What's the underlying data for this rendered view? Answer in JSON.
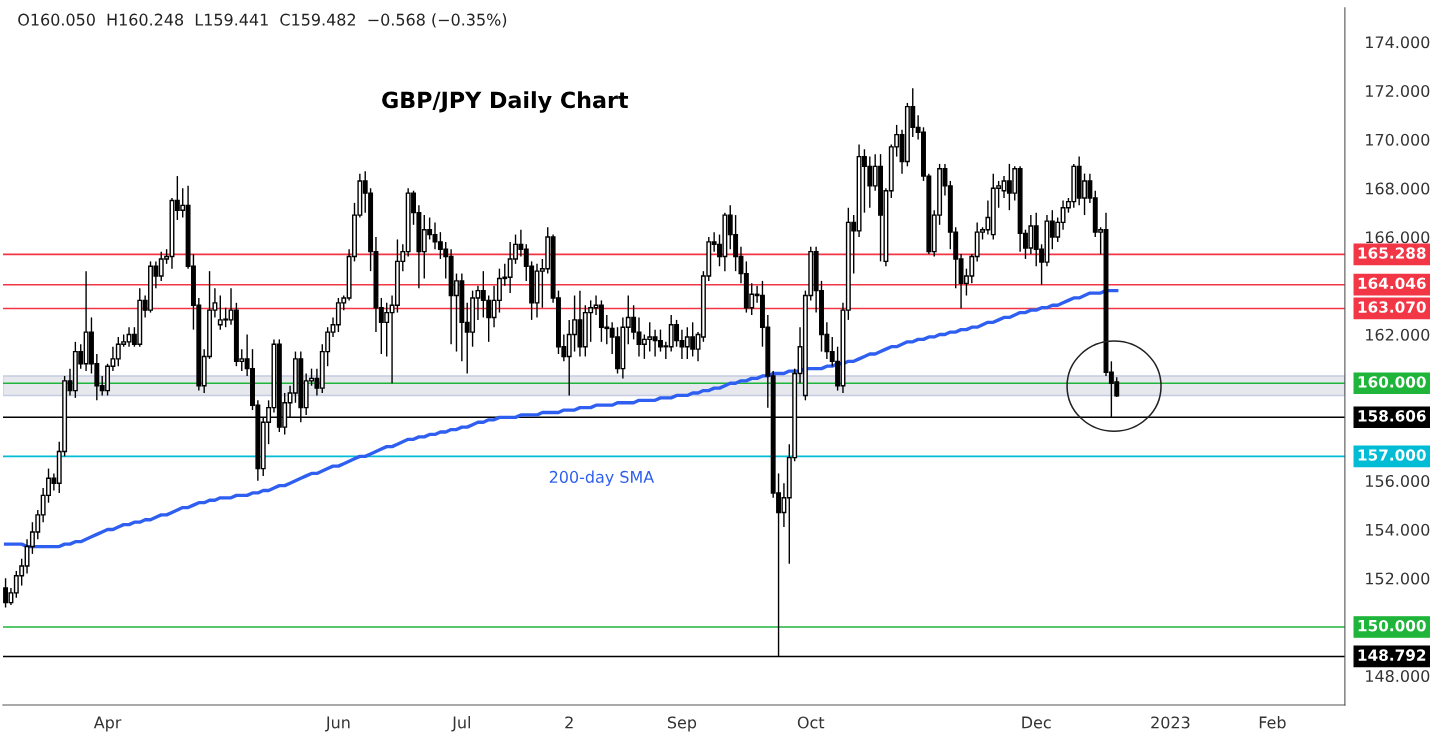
{
  "chart_data": {
    "type": "candlestick",
    "title": "GBP/JPY Daily Chart",
    "annotations": [
      "O160.050  H160.248  L159.441  C159.482  −0.568 (−0.35%)"
    ],
    "categories": [
      null,
      null,
      null,
      null,
      null,
      null,
      null,
      null,
      null,
      null,
      null,
      null,
      null,
      null,
      null,
      null,
      null,
      null,
      null,
      "Apr",
      null,
      null,
      null,
      null,
      null,
      null,
      null,
      null,
      null,
      null,
      null,
      null,
      null,
      null,
      null,
      null,
      null,
      null,
      null,
      null,
      null,
      null,
      null,
      null,
      null,
      null,
      null,
      null,
      null,
      null,
      null,
      null,
      null,
      null,
      null,
      null,
      null,
      null,
      null,
      null,
      null,
      null,
      "Jun",
      null,
      null,
      null,
      null,
      null,
      null,
      null,
      null,
      null,
      null,
      null,
      null,
      null,
      null,
      null,
      null,
      null,
      null,
      null,
      null,
      null,
      null,
      "Jul",
      null,
      null,
      null,
      null,
      null,
      null,
      null,
      null,
      null,
      null,
      null,
      null,
      null,
      null,
      null,
      null,
      null,
      null,
      null,
      "2",
      null,
      null,
      null,
      null,
      null,
      null,
      null,
      null,
      null,
      null,
      null,
      null,
      null,
      null,
      null,
      null,
      null,
      null,
      null,
      null,
      "Sep",
      null,
      null,
      null,
      null,
      null,
      null,
      null,
      null,
      null,
      null,
      null,
      null,
      null,
      null,
      null,
      null,
      null,
      null,
      null,
      null,
      null,
      null,
      null,
      "Oct",
      null,
      null,
      null,
      null,
      null,
      null,
      null,
      null,
      null,
      null,
      null,
      null,
      null,
      null,
      null,
      null,
      null,
      null,
      null,
      null,
      null,
      null,
      null,
      null,
      null,
      null,
      null,
      null,
      null,
      null,
      null,
      null,
      null,
      null,
      null,
      null,
      null,
      null,
      null,
      null,
      null,
      "Dec",
      null,
      null,
      null,
      null,
      null,
      null,
      null,
      null,
      null,
      null,
      null,
      null,
      null,
      null,
      null,
      null,
      null,
      null,
      null,
      null,
      null,
      null,
      null,
      null,
      "2023",
      null,
      null,
      null,
      null,
      null,
      null,
      null,
      null,
      null,
      null,
      null,
      null,
      null,
      null,
      null,
      null,
      null,
      null,
      "Feb",
      null,
      null,
      null,
      null,
      null,
      null,
      null,
      null,
      null,
      null,
      null,
      null,
      null
    ],
    "ohlc": [
      [
        151.6,
        152.0,
        150.8,
        151.0
      ],
      [
        151.0,
        151.6,
        150.9,
        151.4
      ],
      [
        151.4,
        152.3,
        151.2,
        152.1
      ],
      [
        152.1,
        152.8,
        151.7,
        152.5
      ],
      [
        152.5,
        153.6,
        152.2,
        153.3
      ],
      [
        153.3,
        154.3,
        153.0,
        153.9
      ],
      [
        153.9,
        154.8,
        153.6,
        154.6
      ],
      [
        154.6,
        155.7,
        154.3,
        155.4
      ],
      [
        155.4,
        156.5,
        155.1,
        156.1
      ],
      [
        156.1,
        156.3,
        155.6,
        155.9
      ],
      [
        155.9,
        157.6,
        155.5,
        157.2
      ],
      [
        157.2,
        160.3,
        157.0,
        160.1
      ],
      [
        160.1,
        160.6,
        159.5,
        159.7
      ],
      [
        159.7,
        161.7,
        159.4,
        161.3
      ],
      [
        161.3,
        161.6,
        160.6,
        160.8
      ],
      [
        160.8,
        164.6,
        160.5,
        162.1
      ],
      [
        162.1,
        162.7,
        160.4,
        160.8
      ],
      [
        160.8,
        161.2,
        159.3,
        159.9
      ],
      [
        159.9,
        160.3,
        159.5,
        159.7
      ],
      [
        159.7,
        160.8,
        159.5,
        160.7
      ],
      [
        160.7,
        161.5,
        160.5,
        161.0
      ],
      [
        161.0,
        161.9,
        160.7,
        161.6
      ],
      [
        161.6,
        162.0,
        161.5,
        161.7
      ],
      [
        161.7,
        162.3,
        161.5,
        162.0
      ],
      [
        162.0,
        162.3,
        161.5,
        161.6
      ],
      [
        161.6,
        163.9,
        161.5,
        163.4
      ],
      [
        163.4,
        163.6,
        162.7,
        163.0
      ],
      [
        163.0,
        165.0,
        162.9,
        164.8
      ],
      [
        164.8,
        165.0,
        163.9,
        164.4
      ],
      [
        164.4,
        165.4,
        164.2,
        165.1
      ],
      [
        165.1,
        165.5,
        164.9,
        165.2
      ],
      [
        165.2,
        167.6,
        164.7,
        167.5
      ],
      [
        167.5,
        168.5,
        166.7,
        167.1
      ],
      [
        167.1,
        168.0,
        166.8,
        167.3
      ],
      [
        167.3,
        168.1,
        164.7,
        164.8
      ],
      [
        164.8,
        165.3,
        162.2,
        163.2
      ],
      [
        163.2,
        163.5,
        159.7,
        159.9
      ],
      [
        159.9,
        161.4,
        159.6,
        161.1
      ],
      [
        161.1,
        164.6,
        161.0,
        163.0
      ],
      [
        163.0,
        163.9,
        162.7,
        163.3
      ],
      [
        162.4,
        163.6,
        162.2,
        162.6
      ],
      [
        162.6,
        163.1,
        162.3,
        162.6
      ],
      [
        162.6,
        163.9,
        162.4,
        163.0
      ],
      [
        163.0,
        163.3,
        160.7,
        160.9
      ],
      [
        160.9,
        161.4,
        160.5,
        161.0
      ],
      [
        161.0,
        162.0,
        160.3,
        160.6
      ],
      [
        160.6,
        161.4,
        158.9,
        159.1
      ],
      [
        159.1,
        159.3,
        156.0,
        156.5
      ],
      [
        156.5,
        158.6,
        156.2,
        158.4
      ],
      [
        158.4,
        159.3,
        157.5,
        159.0
      ],
      [
        159.0,
        161.8,
        158.8,
        161.6
      ],
      [
        161.6,
        161.8,
        158.0,
        158.2
      ],
      [
        158.2,
        159.6,
        157.9,
        159.2
      ],
      [
        159.2,
        159.9,
        158.6,
        159.6
      ],
      [
        159.6,
        161.3,
        159.2,
        161.0
      ],
      [
        161.0,
        161.3,
        158.4,
        159.0
      ],
      [
        159.0,
        160.4,
        158.7,
        160.1
      ],
      [
        160.1,
        160.6,
        159.9,
        160.2
      ],
      [
        160.2,
        160.6,
        159.5,
        159.8
      ],
      [
        159.8,
        161.6,
        159.6,
        161.3
      ],
      [
        161.3,
        162.3,
        160.7,
        162.1
      ],
      [
        162.1,
        162.7,
        161.9,
        162.4
      ],
      [
        162.4,
        163.5,
        162.1,
        163.3
      ],
      [
        163.3,
        163.6,
        163.0,
        163.5
      ],
      [
        163.5,
        165.5,
        163.4,
        165.2
      ],
      [
        165.2,
        167.4,
        165.0,
        166.9
      ],
      [
        166.9,
        168.6,
        166.8,
        168.3
      ],
      [
        168.3,
        168.7,
        167.0,
        167.8
      ],
      [
        167.8,
        168.0,
        164.6,
        165.4
      ],
      [
        165.4,
        166.0,
        162.1,
        163.1
      ],
      [
        163.1,
        163.5,
        161.2,
        162.5
      ],
      [
        162.5,
        163.3,
        161.1,
        162.9
      ],
      [
        162.9,
        163.6,
        160.0,
        163.2
      ],
      [
        163.2,
        165.9,
        162.9,
        165.0
      ],
      [
        165.0,
        165.7,
        164.6,
        165.4
      ],
      [
        165.4,
        168.0,
        165.2,
        167.8
      ],
      [
        167.8,
        167.9,
        166.5,
        167.0
      ],
      [
        167.0,
        167.3,
        163.9,
        165.4
      ],
      [
        165.4,
        166.9,
        164.3,
        166.3
      ],
      [
        166.3,
        166.8,
        165.9,
        166.1
      ],
      [
        166.1,
        166.6,
        165.5,
        165.8
      ],
      [
        165.8,
        166.2,
        165.1,
        165.5
      ],
      [
        165.5,
        165.8,
        164.3,
        165.2
      ],
      [
        165.2,
        165.5,
        161.6,
        163.6
      ],
      [
        163.6,
        164.5,
        161.3,
        164.2
      ],
      [
        164.2,
        164.5,
        160.9,
        162.5
      ],
      [
        162.5,
        163.3,
        160.4,
        162.1
      ],
      [
        162.1,
        163.8,
        161.5,
        163.5
      ],
      [
        163.5,
        164.0,
        162.6,
        163.8
      ],
      [
        163.8,
        164.6,
        162.7,
        163.4
      ],
      [
        163.4,
        163.6,
        161.7,
        162.7
      ],
      [
        162.7,
        164.0,
        162.3,
        163.4
      ],
      [
        163.4,
        164.7,
        162.9,
        164.3
      ],
      [
        164.3,
        164.9,
        164.0,
        164.35
      ],
      [
        164.35,
        165.8,
        163.7,
        165.1
      ],
      [
        165.1,
        166.1,
        164.9,
        165.7
      ],
      [
        165.7,
        166.3,
        165.2,
        165.5
      ],
      [
        165.5,
        165.7,
        164.2,
        164.8
      ],
      [
        164.8,
        165.0,
        162.6,
        163.3
      ],
      [
        163.3,
        164.9,
        162.7,
        164.6
      ],
      [
        164.6,
        165.1,
        163.1,
        164.7
      ],
      [
        164.7,
        166.4,
        164.5,
        166.0
      ],
      [
        166.0,
        166.1,
        163.3,
        163.5
      ],
      [
        163.5,
        163.8,
        161.2,
        161.5
      ],
      [
        161.5,
        162.0,
        160.9,
        161.1
      ],
      [
        161.1,
        162.6,
        159.5,
        162.0
      ],
      [
        162.0,
        163.6,
        161.3,
        162.6
      ],
      [
        162.6,
        163.8,
        161.1,
        161.5
      ],
      [
        161.5,
        163.2,
        161.1,
        162.9
      ],
      [
        162.9,
        163.4,
        161.7,
        163.1
      ],
      [
        163.1,
        163.6,
        162.8,
        163.2
      ],
      [
        163.2,
        163.4,
        161.7,
        162.3
      ],
      [
        162.3,
        162.8,
        161.6,
        162.25
      ],
      [
        162.25,
        162.5,
        161.2,
        161.9
      ],
      [
        161.9,
        162.3,
        160.4,
        160.6
      ],
      [
        160.6,
        162.7,
        160.2,
        162.3
      ],
      [
        162.3,
        163.6,
        161.6,
        162.7
      ],
      [
        162.7,
        163.2,
        161.8,
        162.1
      ],
      [
        162.1,
        162.7,
        161.1,
        161.6
      ],
      [
        161.6,
        162.0,
        161.0,
        161.8
      ],
      [
        161.8,
        162.5,
        161.3,
        161.9
      ],
      [
        161.9,
        162.2,
        161.1,
        161.75
      ],
      [
        161.75,
        162.2,
        161.3,
        161.5
      ],
      [
        161.5,
        161.7,
        161.0,
        161.5
      ],
      [
        161.5,
        162.8,
        161.3,
        162.4
      ],
      [
        162.4,
        162.6,
        161.5,
        161.75
      ],
      [
        161.75,
        162.2,
        161.0,
        161.5
      ],
      [
        161.5,
        162.3,
        161.0,
        161.9
      ],
      [
        161.9,
        162.5,
        161.1,
        161.4
      ],
      [
        161.4,
        162.1,
        160.9,
        162.0
      ],
      [
        161.9,
        164.6,
        161.7,
        164.4
      ],
      [
        164.4,
        166.0,
        164.2,
        165.8
      ],
      [
        165.8,
        166.2,
        165.4,
        165.7
      ],
      [
        165.7,
        166.1,
        164.8,
        165.2
      ],
      [
        165.2,
        167.0,
        164.6,
        166.9
      ],
      [
        166.9,
        167.3,
        165.5,
        166.1
      ],
      [
        166.1,
        166.9,
        164.6,
        165.2
      ],
      [
        165.2,
        165.6,
        164.1,
        164.5
      ],
      [
        164.5,
        165.0,
        162.9,
        163.1
      ],
      [
        163.1,
        164.1,
        162.8,
        163.65
      ],
      [
        163.65,
        164.0,
        163.3,
        163.6
      ],
      [
        163.6,
        164.2,
        161.5,
        162.3
      ],
      [
        162.3,
        162.8,
        159.0,
        160.3
      ],
      [
        160.3,
        160.5,
        155.3,
        155.5
      ],
      [
        155.5,
        156.3,
        148.79,
        154.7
      ],
      [
        154.7,
        155.9,
        154.1,
        155.3
      ],
      [
        155.3,
        157.5,
        152.6,
        156.95
      ],
      [
        156.95,
        160.6,
        156.8,
        160.4
      ],
      [
        160.4,
        162.3,
        160.0,
        161.5
      ],
      [
        159.5,
        163.8,
        159.3,
        163.6
      ],
      [
        163.6,
        165.6,
        163.4,
        165.4
      ],
      [
        165.4,
        165.6,
        162.9,
        163.8
      ],
      [
        163.8,
        164.2,
        161.3,
        162.0
      ],
      [
        162.0,
        162.5,
        161.0,
        161.3
      ],
      [
        161.3,
        161.9,
        160.7,
        160.9
      ],
      [
        160.9,
        161.5,
        159.7,
        159.9
      ],
      [
        159.9,
        163.3,
        159.6,
        163.0
      ],
      [
        163.0,
        167.2,
        162.6,
        166.6
      ],
      [
        166.6,
        166.9,
        164.5,
        166.25
      ],
      [
        166.25,
        169.8,
        166.0,
        169.3
      ],
      [
        169.3,
        169.6,
        167.0,
        168.9
      ],
      [
        168.9,
        169.3,
        167.2,
        168.1
      ],
      [
        168.1,
        169.4,
        167.9,
        168.9
      ],
      [
        168.9,
        169.4,
        165.0,
        166.9
      ],
      [
        165.0,
        168.0,
        164.8,
        167.9
      ],
      [
        167.9,
        169.8,
        167.6,
        169.7
      ],
      [
        169.7,
        170.6,
        169.3,
        170.2
      ],
      [
        170.2,
        170.4,
        168.6,
        169.1
      ],
      [
        169.1,
        171.5,
        168.9,
        171.35
      ],
      [
        171.35,
        172.1,
        170.1,
        170.5
      ],
      [
        170.5,
        171.0,
        170.0,
        170.3
      ],
      [
        170.3,
        170.5,
        168.3,
        168.5
      ],
      [
        168.5,
        168.6,
        165.3,
        165.4
      ],
      [
        165.4,
        167.1,
        165.2,
        166.9
      ],
      [
        166.9,
        169.0,
        166.5,
        168.8
      ],
      [
        168.8,
        169.0,
        167.7,
        168.1
      ],
      [
        168.1,
        168.3,
        165.5,
        166.2
      ],
      [
        166.2,
        166.4,
        163.9,
        165.1
      ],
      [
        165.1,
        165.3,
        163.07,
        164.1
      ],
      [
        164.1,
        164.7,
        163.6,
        164.4
      ],
      [
        164.4,
        165.3,
        164.1,
        165.2
      ],
      [
        165.2,
        166.6,
        165.0,
        166.2
      ],
      [
        166.2,
        166.4,
        165.9,
        166.3
      ],
      [
        166.3,
        167.5,
        166.1,
        166.8
      ],
      [
        166.1,
        168.6,
        165.9,
        168.0
      ],
      [
        168.0,
        168.3,
        167.2,
        168.1
      ],
      [
        167.9,
        168.5,
        167.6,
        168.3
      ],
      [
        168.3,
        169.0,
        167.1,
        167.8
      ],
      [
        167.8,
        168.9,
        167.5,
        168.8
      ],
      [
        168.8,
        168.9,
        165.4,
        166.15
      ],
      [
        166.15,
        166.3,
        165.1,
        165.55
      ],
      [
        165.55,
        166.9,
        165.3,
        166.45
      ],
      [
        166.45,
        167.0,
        164.8,
        165.5
      ],
      [
        165.5,
        165.7,
        164.046,
        164.97
      ],
      [
        164.97,
        166.9,
        164.8,
        166.65
      ],
      [
        166.65,
        167.1,
        165.5,
        166.0
      ],
      [
        166.0,
        166.8,
        165.8,
        166.6
      ],
      [
        166.6,
        167.5,
        166.3,
        167.2
      ],
      [
        167.2,
        167.6,
        167.0,
        167.45
      ],
      [
        167.45,
        169.0,
        167.2,
        168.9
      ],
      [
        168.9,
        169.3,
        167.3,
        167.6
      ],
      [
        167.6,
        168.6,
        166.9,
        168.3
      ],
      [
        168.3,
        168.6,
        167.4,
        167.6
      ],
      [
        167.6,
        167.9,
        166.0,
        166.2
      ],
      [
        166.2,
        166.4,
        165.288,
        166.3
      ],
      [
        166.3,
        167.0,
        160.3,
        160.45
      ],
      [
        160.45,
        160.9,
        158.606,
        160.0
      ],
      [
        160.05,
        160.248,
        159.441,
        159.482
      ],
      null,
      null,
      null,
      null,
      null,
      null,
      null,
      null,
      null,
      null,
      null,
      null,
      null,
      null,
      null,
      null,
      null,
      null,
      null,
      null,
      null,
      null,
      null,
      null,
      null,
      null,
      null,
      null,
      null,
      null,
      null,
      null,
      null,
      null,
      null,
      null,
      null,
      null,
      null,
      null,
      null,
      null
    ],
    "series": [
      {
        "name": "200-day SMA",
        "type": "line",
        "color": "#2f5ff0",
        "values": [
          153.4,
          153.4,
          153.4,
          153.4,
          153.3,
          153.3,
          153.3,
          153.3,
          153.3,
          153.3,
          153.3,
          153.4,
          153.4,
          153.5,
          153.5,
          153.6,
          153.7,
          153.8,
          153.9,
          154.0,
          154.0,
          154.1,
          154.2,
          154.2,
          154.3,
          154.3,
          154.4,
          154.4,
          154.5,
          154.6,
          154.6,
          154.7,
          154.8,
          154.9,
          154.9,
          155.0,
          155.1,
          155.1,
          155.2,
          155.2,
          155.3,
          155.3,
          155.3,
          155.4,
          155.4,
          155.4,
          155.5,
          155.5,
          155.6,
          155.6,
          155.7,
          155.8,
          155.8,
          155.9,
          156.0,
          156.1,
          156.2,
          156.3,
          156.3,
          156.4,
          156.5,
          156.6,
          156.6,
          156.7,
          156.8,
          156.9,
          157.0,
          157.0,
          157.1,
          157.2,
          157.3,
          157.4,
          157.4,
          157.5,
          157.6,
          157.7,
          157.7,
          157.8,
          157.8,
          157.9,
          157.9,
          158.0,
          158.0,
          158.1,
          158.1,
          158.2,
          158.2,
          158.3,
          158.4,
          158.4,
          158.5,
          158.5,
          158.6,
          158.6,
          158.6,
          158.6,
          158.7,
          158.7,
          158.7,
          158.7,
          158.8,
          158.8,
          158.8,
          158.8,
          158.9,
          158.9,
          158.9,
          159.0,
          159.0,
          159.0,
          159.1,
          159.1,
          159.1,
          159.1,
          159.2,
          159.2,
          159.2,
          159.2,
          159.3,
          159.3,
          159.3,
          159.3,
          159.4,
          159.4,
          159.4,
          159.5,
          159.5,
          159.5,
          159.6,
          159.6,
          159.7,
          159.7,
          159.8,
          159.8,
          159.9,
          160.0,
          160.0,
          160.1,
          160.1,
          160.2,
          160.2,
          160.3,
          160.3,
          160.4,
          160.4,
          160.4,
          160.5,
          160.5,
          160.5,
          160.6,
          160.6,
          160.6,
          160.6,
          160.7,
          160.7,
          160.8,
          160.8,
          160.9,
          160.9,
          161.0,
          161.1,
          161.2,
          161.2,
          161.3,
          161.4,
          161.5,
          161.5,
          161.6,
          161.7,
          161.7,
          161.8,
          161.8,
          161.9,
          161.9,
          162.0,
          162.0,
          162.1,
          162.1,
          162.2,
          162.2,
          162.3,
          162.3,
          162.4,
          162.5,
          162.5,
          162.6,
          162.7,
          162.7,
          162.8,
          162.9,
          162.9,
          163.0,
          163.0,
          163.1,
          163.1,
          163.2,
          163.2,
          163.3,
          163.4,
          163.5,
          163.5,
          163.6,
          163.7,
          163.7,
          163.7,
          163.8,
          163.8,
          163.8,
          null,
          null,
          null,
          null,
          null,
          null,
          null,
          null,
          null,
          null,
          null,
          null,
          null,
          null,
          null,
          null,
          null,
          null,
          null,
          null,
          null,
          null,
          null,
          null,
          null,
          null,
          null,
          null,
          null,
          null,
          null,
          null,
          null,
          null,
          null,
          null,
          null,
          null,
          null,
          null,
          null,
          null
        ]
      }
    ],
    "ylim": [
      146.8,
      175.4
    ],
    "yticks": [
      {
        "value": 148,
        "label": "148.000"
      },
      {
        "value": 152,
        "label": "152.000"
      },
      {
        "value": 154,
        "label": "154.000"
      },
      {
        "value": 156,
        "label": "156.000"
      },
      {
        "value": 162,
        "label": "162.000"
      },
      {
        "value": 166,
        "label": "166.000"
      },
      {
        "value": 168,
        "label": "168.000"
      },
      {
        "value": 170,
        "label": "170.000"
      },
      {
        "value": 172,
        "label": "172.000"
      },
      {
        "value": 174,
        "label": "174.000"
      }
    ],
    "ref_lines": [
      {
        "axis": "y",
        "value": 165.288,
        "label": "165.288",
        "color": "#f23645"
      },
      {
        "axis": "y",
        "value": 164.046,
        "label": "164.046",
        "color": "#f23645"
      },
      {
        "axis": "y",
        "value": 163.07,
        "label": "163.070",
        "color": "#f23645"
      },
      {
        "axis": "y",
        "value": 160.0,
        "label": "160.000",
        "color": "#1fb53a"
      },
      {
        "axis": "y",
        "value": 158.606,
        "label": "158.606",
        "color": "#000000"
      },
      {
        "axis": "y",
        "value": 157.0,
        "label": "157.000",
        "color": "#00bcd4"
      },
      {
        "axis": "y",
        "value": 150.0,
        "label": "150.000",
        "color": "#1fb53a"
      },
      {
        "axis": "y",
        "value": 148.792,
        "label": "148.792",
        "color": "#000000"
      }
    ],
    "bands": [
      {
        "axis": "y",
        "from": 159.5,
        "to": 160.3,
        "color": "#e6e8ee"
      }
    ]
  }
}
